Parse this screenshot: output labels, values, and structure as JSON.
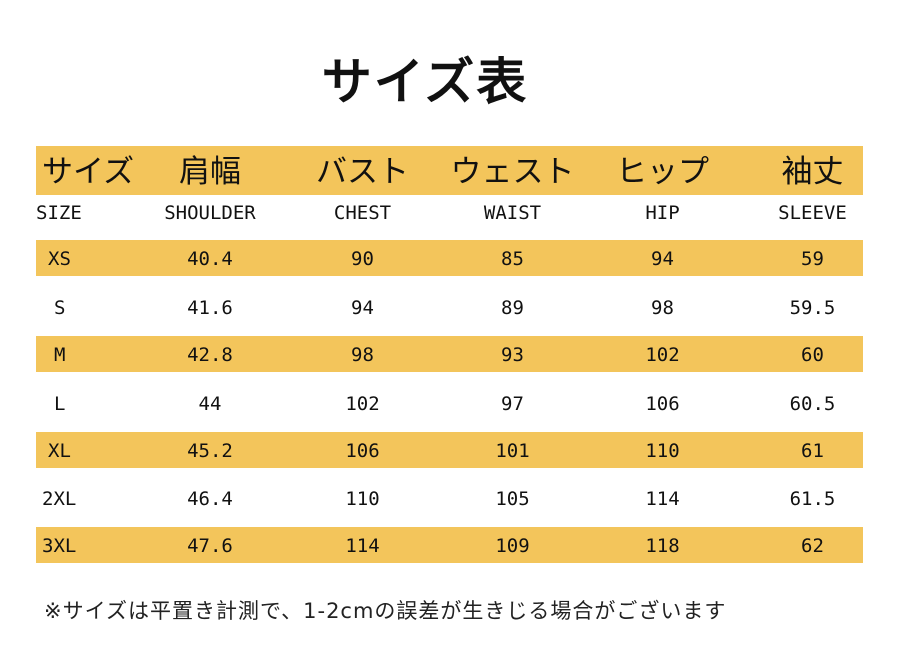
{
  "title": "サイズ表",
  "header_jp": [
    "サイズ",
    "肩幅",
    "バスト",
    "ウェスト",
    "ヒップ",
    "袖丈"
  ],
  "header_en": [
    "SIZE",
    "SHOULDER",
    "CHEST",
    "WAIST",
    "HIP",
    "SLEEVE"
  ],
  "rows": [
    [
      "XS",
      "40.4",
      "90",
      "85",
      "94",
      "59"
    ],
    [
      "S",
      "41.6",
      "94",
      "89",
      "98",
      "59.5"
    ],
    [
      "M",
      "42.8",
      "98",
      "93",
      "102",
      "60"
    ],
    [
      "L",
      "44",
      "102",
      "97",
      "106",
      "60.5"
    ],
    [
      "XL",
      "45.2",
      "106",
      "101",
      "110",
      "61"
    ],
    [
      "2XL",
      "46.4",
      "110",
      "105",
      "114",
      "61.5"
    ],
    [
      "3XL",
      "47.6",
      "114",
      "109",
      "118",
      "62"
    ]
  ],
  "note": "※サイズは平置き計測で、1-2cmの誤差が生きじる場合がございます",
  "colors": {
    "band": "#f3c55b",
    "text": "#111111"
  }
}
